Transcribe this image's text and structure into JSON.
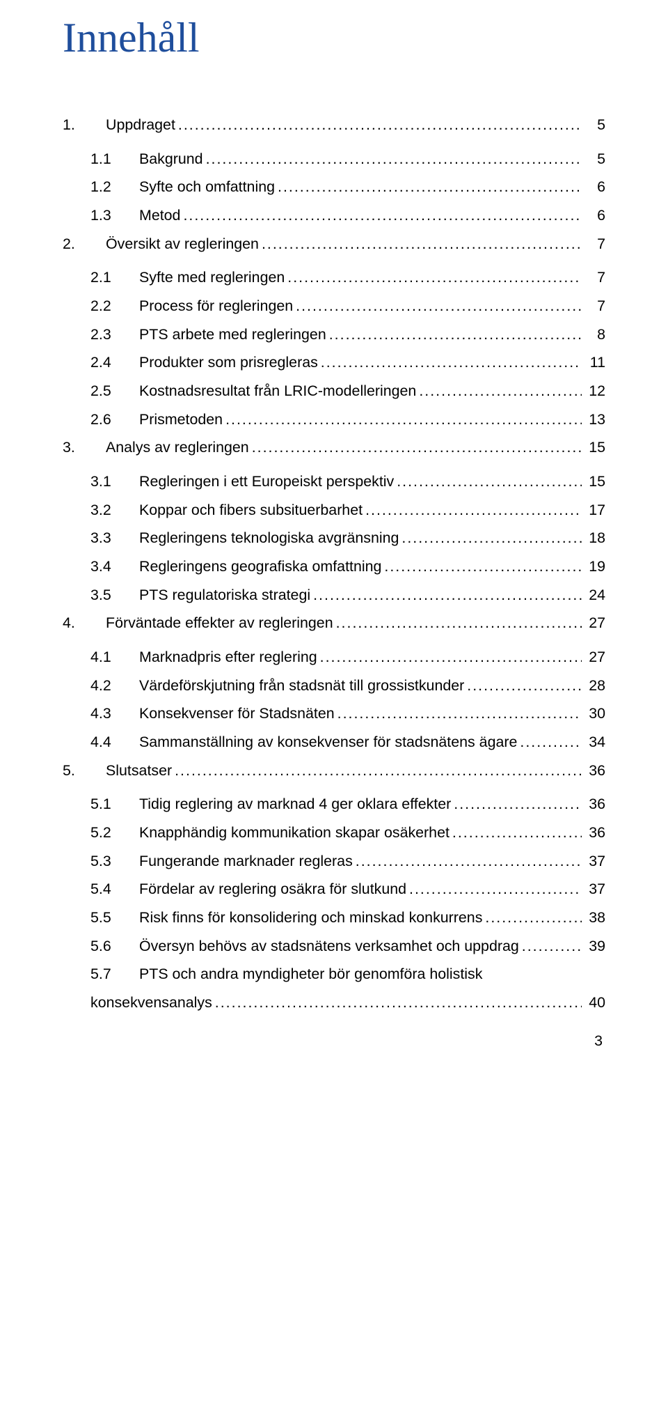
{
  "title_text": "Innehåll",
  "title_color": "#1f4e9c",
  "body_color": "#000000",
  "background_color": "#ffffff",
  "fontsize_title": 60,
  "fontsize_body": 21.4,
  "page_number": "3",
  "toc": [
    {
      "level": 0,
      "num": "1.",
      "label": "Uppdraget",
      "page": "5",
      "gap_above": false
    },
    {
      "level": 1,
      "num": "1.1",
      "label": "Bakgrund",
      "page": "5",
      "gap_above": true
    },
    {
      "level": 1,
      "num": "1.2",
      "label": "Syfte och omfattning",
      "page": "6",
      "gap_above": false
    },
    {
      "level": 1,
      "num": "1.3",
      "label": "Metod",
      "page": "6",
      "gap_above": false
    },
    {
      "level": 0,
      "num": "2.",
      "label": "Översikt av regleringen",
      "page": "7",
      "gap_above": false
    },
    {
      "level": 1,
      "num": "2.1",
      "label": "Syfte med regleringen",
      "page": "7",
      "gap_above": true
    },
    {
      "level": 1,
      "num": "2.2",
      "label": "Process för regleringen",
      "page": "7",
      "gap_above": false
    },
    {
      "level": 1,
      "num": "2.3",
      "label": "PTS arbete med regleringen",
      "page": "8",
      "gap_above": false
    },
    {
      "level": 1,
      "num": "2.4",
      "label": "Produkter som prisregleras",
      "page": "11",
      "gap_above": false
    },
    {
      "level": 1,
      "num": "2.5",
      "label": "Kostnadsresultat från LRIC-modelleringen",
      "page": "12",
      "gap_above": false
    },
    {
      "level": 1,
      "num": "2.6",
      "label": "Prismetoden",
      "page": "13",
      "gap_above": false
    },
    {
      "level": 0,
      "num": "3.",
      "label": "Analys av regleringen",
      "page": "15",
      "gap_above": false
    },
    {
      "level": 1,
      "num": "3.1",
      "label": "Regleringen i ett Europeiskt perspektiv",
      "page": "15",
      "gap_above": true
    },
    {
      "level": 1,
      "num": "3.2",
      "label": "Koppar och fibers subsituerbarhet",
      "page": "17",
      "gap_above": false
    },
    {
      "level": 1,
      "num": "3.3",
      "label": "Regleringens teknologiska avgränsning",
      "page": "18",
      "gap_above": false
    },
    {
      "level": 1,
      "num": "3.4",
      "label": "Regleringens geografiska omfattning",
      "page": "19",
      "gap_above": false
    },
    {
      "level": 1,
      "num": "3.5",
      "label": "PTS regulatoriska strategi",
      "page": "24",
      "gap_above": false
    },
    {
      "level": 0,
      "num": "4.",
      "label": "Förväntade effekter av regleringen",
      "page": "27",
      "gap_above": false
    },
    {
      "level": 1,
      "num": "4.1",
      "label": "Marknadpris efter reglering",
      "page": "27",
      "gap_above": true
    },
    {
      "level": 1,
      "num": "4.2",
      "label": "Värdeförskjutning från stadsnät till grossistkunder",
      "page": "28",
      "gap_above": false
    },
    {
      "level": 1,
      "num": "4.3",
      "label": "Konsekvenser för Stadsnäten",
      "page": "30",
      "gap_above": false
    },
    {
      "level": 1,
      "num": "4.4",
      "label": "Sammanställning av konsekvenser för stadsnätens ägare",
      "page": "34",
      "gap_above": false
    },
    {
      "level": 0,
      "num": "5.",
      "label": "Slutsatser",
      "page": "36",
      "gap_above": false
    },
    {
      "level": 1,
      "num": "5.1",
      "label": "Tidig reglering av marknad 4 ger oklara effekter",
      "page": "36",
      "gap_above": true
    },
    {
      "level": 1,
      "num": "5.2",
      "label": "Knapphändig kommunikation skapar osäkerhet",
      "page": "36",
      "gap_above": false
    },
    {
      "level": 1,
      "num": "5.3",
      "label": "Fungerande marknader regleras",
      "page": "37",
      "gap_above": false
    },
    {
      "level": 1,
      "num": "5.4",
      "label": "Fördelar av reglering osäkra för slutkund",
      "page": "37",
      "gap_above": false
    },
    {
      "level": 1,
      "num": "5.5",
      "label": "Risk finns för konsolidering och minskad konkurrens",
      "page": "38",
      "gap_above": false
    },
    {
      "level": 1,
      "num": "5.6",
      "label": "Översyn behövs av stadsnätens verksamhet och uppdrag",
      "page": "39",
      "gap_above": false
    },
    {
      "level": 1,
      "num": "5.7",
      "label": "PTS och andra myndigheter bör genomföra holistisk",
      "page": "",
      "gap_above": false,
      "no_leader": true
    },
    {
      "level": "unnum",
      "num": "",
      "label": "konsekvensanalys",
      "page": "40",
      "gap_above": false
    }
  ]
}
